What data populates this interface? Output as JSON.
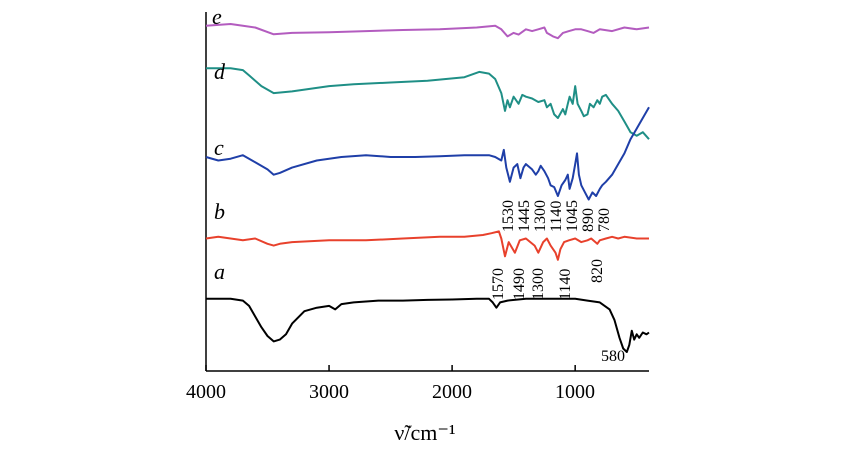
{
  "chart_data": {
    "type": "line",
    "title": "",
    "xlabel": "ν̃/cm⁻¹",
    "ylabel": "",
    "xlim": [
      4000,
      400
    ],
    "x_reversed": true,
    "x_ticks": [
      4000,
      3000,
      2000,
      1000
    ],
    "grid": false,
    "legend": "none (curves labeled inline)",
    "series": [
      {
        "name": "e",
        "color": "#b35cbf",
        "points": [
          [
            4000,
            92
          ],
          [
            3800,
            92.5
          ],
          [
            3700,
            92
          ],
          [
            3600,
            91.5
          ],
          [
            3450,
            89.6
          ],
          [
            3300,
            90
          ],
          [
            3000,
            90.2
          ],
          [
            2700,
            90.5
          ],
          [
            2400,
            90.8
          ],
          [
            2100,
            91
          ],
          [
            1800,
            91.5
          ],
          [
            1650,
            92
          ],
          [
            1600,
            91
          ],
          [
            1550,
            89
          ],
          [
            1500,
            90
          ],
          [
            1460,
            89.5
          ],
          [
            1400,
            91
          ],
          [
            1350,
            90.5
          ],
          [
            1300,
            91
          ],
          [
            1250,
            91.5
          ],
          [
            1230,
            90
          ],
          [
            1180,
            89
          ],
          [
            1140,
            88.5
          ],
          [
            1100,
            90
          ],
          [
            1050,
            90.5
          ],
          [
            1000,
            91
          ],
          [
            950,
            91
          ],
          [
            900,
            90.5
          ],
          [
            850,
            90
          ],
          [
            800,
            91
          ],
          [
            700,
            90.5
          ],
          [
            600,
            91.5
          ],
          [
            500,
            91
          ],
          [
            400,
            91.5
          ]
        ]
      },
      {
        "name": "d",
        "color": "#1f8f86",
        "points": [
          [
            4000,
            80
          ],
          [
            3800,
            80
          ],
          [
            3700,
            79.5
          ],
          [
            3650,
            78
          ],
          [
            3550,
            75
          ],
          [
            3450,
            73
          ],
          [
            3300,
            73.5
          ],
          [
            3000,
            75
          ],
          [
            2800,
            75.5
          ],
          [
            2500,
            76
          ],
          [
            2200,
            76.5
          ],
          [
            1900,
            77.5
          ],
          [
            1780,
            79
          ],
          [
            1700,
            78.5
          ],
          [
            1650,
            77
          ],
          [
            1600,
            73
          ],
          [
            1570,
            68
          ],
          [
            1550,
            71
          ],
          [
            1530,
            69
          ],
          [
            1500,
            72
          ],
          [
            1460,
            70
          ],
          [
            1430,
            72.5
          ],
          [
            1400,
            72
          ],
          [
            1350,
            71.5
          ],
          [
            1300,
            70.5
          ],
          [
            1250,
            71
          ],
          [
            1230,
            69
          ],
          [
            1200,
            70
          ],
          [
            1170,
            67
          ],
          [
            1140,
            66
          ],
          [
            1100,
            68.5
          ],
          [
            1080,
            67
          ],
          [
            1060,
            70
          ],
          [
            1045,
            72
          ],
          [
            1020,
            70
          ],
          [
            1000,
            75
          ],
          [
            980,
            70
          ],
          [
            950,
            68
          ],
          [
            930,
            66.5
          ],
          [
            900,
            67
          ],
          [
            880,
            70
          ],
          [
            850,
            69
          ],
          [
            820,
            71
          ],
          [
            800,
            70
          ],
          [
            780,
            72
          ],
          [
            750,
            72.5
          ],
          [
            700,
            70
          ],
          [
            650,
            68
          ],
          [
            600,
            65
          ],
          [
            550,
            62
          ],
          [
            500,
            61
          ],
          [
            450,
            62
          ],
          [
            400,
            60
          ]
        ]
      },
      {
        "name": "c",
        "color": "#1f3fa8",
        "points": [
          [
            4000,
            55
          ],
          [
            3900,
            54
          ],
          [
            3800,
            54.5
          ],
          [
            3700,
            55.5
          ],
          [
            3600,
            53.5
          ],
          [
            3500,
            51.5
          ],
          [
            3450,
            50
          ],
          [
            3400,
            50.5
          ],
          [
            3300,
            52
          ],
          [
            3100,
            54
          ],
          [
            2900,
            55
          ],
          [
            2700,
            55.5
          ],
          [
            2500,
            55
          ],
          [
            2300,
            55
          ],
          [
            2100,
            55.2
          ],
          [
            1900,
            55.5
          ],
          [
            1700,
            55.5
          ],
          [
            1650,
            55
          ],
          [
            1600,
            54
          ],
          [
            1580,
            57
          ],
          [
            1560,
            52
          ],
          [
            1530,
            48
          ],
          [
            1500,
            52
          ],
          [
            1470,
            53
          ],
          [
            1445,
            49
          ],
          [
            1420,
            52
          ],
          [
            1400,
            53
          ],
          [
            1350,
            51.5
          ],
          [
            1320,
            50
          ],
          [
            1300,
            51
          ],
          [
            1280,
            52.5
          ],
          [
            1250,
            51
          ],
          [
            1220,
            49
          ],
          [
            1200,
            47
          ],
          [
            1170,
            46.5
          ],
          [
            1140,
            44
          ],
          [
            1110,
            47
          ],
          [
            1080,
            48.5
          ],
          [
            1060,
            50
          ],
          [
            1045,
            46
          ],
          [
            1020,
            49
          ],
          [
            1000,
            53
          ],
          [
            985,
            56
          ],
          [
            970,
            50
          ],
          [
            950,
            47
          ],
          [
            920,
            45
          ],
          [
            890,
            43
          ],
          [
            860,
            45
          ],
          [
            830,
            44
          ],
          [
            800,
            46
          ],
          [
            780,
            47
          ],
          [
            750,
            48
          ],
          [
            700,
            50
          ],
          [
            650,
            53
          ],
          [
            600,
            56
          ],
          [
            550,
            60
          ],
          [
            500,
            63
          ],
          [
            450,
            66
          ],
          [
            400,
            69
          ]
        ]
      },
      {
        "name": "b",
        "color": "#e8412c",
        "points": [
          [
            4000,
            32
          ],
          [
            3900,
            32.5
          ],
          [
            3800,
            32
          ],
          [
            3700,
            31.5
          ],
          [
            3600,
            32
          ],
          [
            3500,
            30.5
          ],
          [
            3450,
            30
          ],
          [
            3400,
            30.5
          ],
          [
            3300,
            31
          ],
          [
            3000,
            31.5
          ],
          [
            2700,
            31.5
          ],
          [
            2400,
            32
          ],
          [
            2100,
            32.5
          ],
          [
            1900,
            32.5
          ],
          [
            1750,
            33
          ],
          [
            1680,
            33.5
          ],
          [
            1620,
            34
          ],
          [
            1600,
            32
          ],
          [
            1570,
            27
          ],
          [
            1540,
            31
          ],
          [
            1490,
            28
          ],
          [
            1450,
            31.5
          ],
          [
            1400,
            32
          ],
          [
            1330,
            30
          ],
          [
            1300,
            28
          ],
          [
            1260,
            31
          ],
          [
            1230,
            32
          ],
          [
            1200,
            30
          ],
          [
            1160,
            28
          ],
          [
            1140,
            26
          ],
          [
            1120,
            29
          ],
          [
            1090,
            31
          ],
          [
            1050,
            31.5
          ],
          [
            1000,
            32
          ],
          [
            950,
            31
          ],
          [
            900,
            31.5
          ],
          [
            870,
            32
          ],
          [
            820,
            30.5
          ],
          [
            800,
            31.5
          ],
          [
            750,
            32
          ],
          [
            700,
            32.5
          ],
          [
            650,
            32
          ],
          [
            600,
            32.5
          ],
          [
            500,
            32
          ],
          [
            400,
            32
          ]
        ]
      },
      {
        "name": "a",
        "color": "#000000",
        "points": [
          [
            4000,
            15
          ],
          [
            3900,
            15
          ],
          [
            3800,
            15
          ],
          [
            3700,
            14.5
          ],
          [
            3650,
            13
          ],
          [
            3600,
            10
          ],
          [
            3550,
            7
          ],
          [
            3500,
            4.5
          ],
          [
            3450,
            3
          ],
          [
            3400,
            3.5
          ],
          [
            3350,
            5
          ],
          [
            3300,
            8
          ],
          [
            3200,
            11.5
          ],
          [
            3100,
            12.5
          ],
          [
            3000,
            13
          ],
          [
            2950,
            12
          ],
          [
            2900,
            13.5
          ],
          [
            2800,
            14
          ],
          [
            2600,
            14.5
          ],
          [
            2400,
            14.5
          ],
          [
            2200,
            14.7
          ],
          [
            2000,
            14.8
          ],
          [
            1800,
            15
          ],
          [
            1700,
            15
          ],
          [
            1670,
            14
          ],
          [
            1640,
            12.5
          ],
          [
            1610,
            14
          ],
          [
            1550,
            14.5
          ],
          [
            1400,
            15
          ],
          [
            1200,
            15
          ],
          [
            1000,
            15
          ],
          [
            900,
            14.5
          ],
          [
            800,
            14
          ],
          [
            720,
            12
          ],
          [
            680,
            9
          ],
          [
            640,
            4
          ],
          [
            610,
            1
          ],
          [
            580,
            0
          ],
          [
            560,
            2
          ],
          [
            540,
            6
          ],
          [
            520,
            3.5
          ],
          [
            500,
            5
          ],
          [
            480,
            4
          ],
          [
            450,
            5.5
          ],
          [
            420,
            5
          ],
          [
            400,
            5.5
          ]
        ]
      }
    ],
    "annotations": {
      "c": [
        "1530",
        "1445",
        "1300",
        "1140",
        "1045",
        "890",
        "780"
      ],
      "b": [
        "1570",
        "1490",
        "1300",
        "1140",
        "820"
      ],
      "a": [
        "580"
      ]
    }
  },
  "texts": {
    "ann_c_1530": "1530",
    "ann_c_1445": "1445",
    "ann_c_1300": "1300",
    "ann_c_1140": "1140",
    "ann_c_1045": "1045",
    "ann_c_890": "890",
    "ann_c_780": "780",
    "ann_b_1570": "1570",
    "ann_b_1490": "1490",
    "ann_b_1300": "1300",
    "ann_b_1140": "1140",
    "ann_b_820": "820",
    "ann_a_580": "580"
  }
}
